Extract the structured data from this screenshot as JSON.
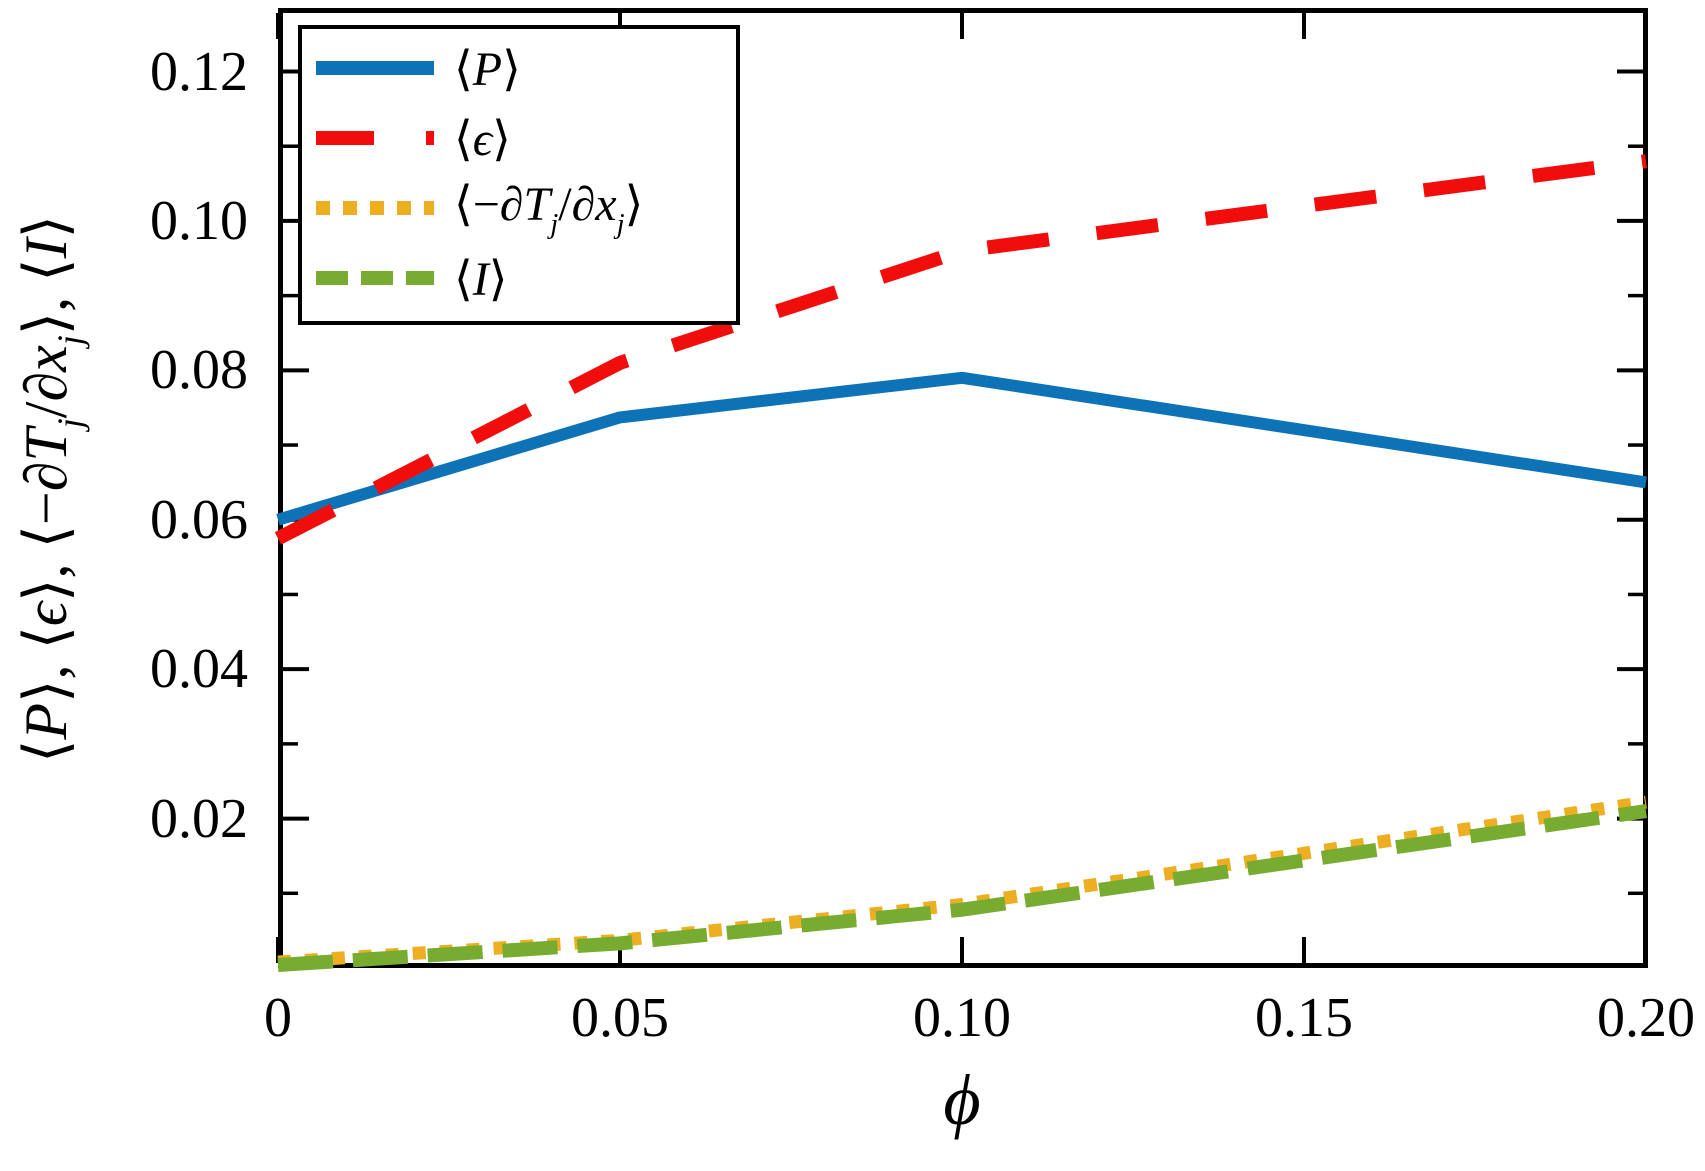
{
  "figure": {
    "x_label": "ϕ",
    "y_label_segments": [
      {
        "t": "⟨"
      },
      {
        "t": "P",
        "i": 1
      },
      {
        "t": "⟩, ⟨"
      },
      {
        "t": "ϵ",
        "i": 1
      },
      {
        "t": "⟩, ⟨−"
      },
      {
        "t": "∂T",
        "i": 1
      },
      {
        "t": "j",
        "i": 1,
        "s": 1
      },
      {
        "t": "/"
      },
      {
        "t": "∂x",
        "i": 1
      },
      {
        "t": "j",
        "i": 1,
        "s": 1
      },
      {
        "t": "⟩, ⟨"
      },
      {
        "t": "I",
        "i": 1
      },
      {
        "t": "⟩"
      }
    ]
  },
  "legend": {
    "position": "upper-left",
    "entries": [
      {
        "name": "P-series",
        "color": "#0E72B6",
        "dash": "",
        "key_dash": "",
        "segments": [
          {
            "t": "⟨"
          },
          {
            "t": "P",
            "i": 1
          },
          {
            "t": "⟩"
          }
        ]
      },
      {
        "name": "epsilon-series",
        "color": "#F20D0D",
        "dash": "62 48",
        "key_dash": "58 52",
        "segments": [
          {
            "t": "⟨"
          },
          {
            "t": "ϵ",
            "i": 1
          },
          {
            "t": "⟩"
          }
        ]
      },
      {
        "name": "dTdx-series",
        "color": "#EDAF21",
        "dash": "13 14",
        "key_dash": "14 13",
        "segments": [
          {
            "t": "⟨−"
          },
          {
            "t": "∂T",
            "i": 1
          },
          {
            "t": "j",
            "i": 1,
            "s": 1
          },
          {
            "t": "/"
          },
          {
            "t": "∂x",
            "i": 1
          },
          {
            "t": "j",
            "i": 1,
            "s": 1
          },
          {
            "t": "⟩"
          }
        ]
      },
      {
        "name": "I-series",
        "color": "#78AC30",
        "dash": "55 20",
        "key_dash": "32 13",
        "segments": [
          {
            "t": "⟨"
          },
          {
            "t": "I",
            "i": 1
          },
          {
            "t": "⟩"
          }
        ]
      }
    ]
  },
  "chart_data": {
    "type": "line",
    "x": [
      0,
      0.05,
      0.1,
      0.2
    ],
    "series": [
      {
        "name": "⟨P⟩",
        "values": [
          0.06,
          0.0737,
          0.079,
          0.065
        ],
        "color": "#0E72B6",
        "style": "solid",
        "width": 12
      },
      {
        "name": "⟨ϵ⟩",
        "values": [
          0.0575,
          0.081,
          0.096,
          0.108
        ],
        "color": "#F20D0D",
        "style": "dashed",
        "width": 14
      },
      {
        "name": "⟨−∂Tj/∂xj⟩",
        "values": [
          0.0008,
          0.0037,
          0.0085,
          0.0222
        ],
        "color": "#EDAF21",
        "style": "dotted",
        "width": 13
      },
      {
        "name": "⟨I⟩",
        "values": [
          0.0004,
          0.0033,
          0.0078,
          0.021
        ],
        "color": "#78AC30",
        "style": "long-dashed",
        "width": 14
      }
    ],
    "xlabel": "ϕ",
    "ylabel": "⟨P⟩, ⟨ϵ⟩, ⟨−∂Tj/∂xj⟩, ⟨I⟩",
    "xlim": [
      0,
      0.2
    ],
    "ylim": [
      0,
      0.1285
    ],
    "x_ticks": [
      0,
      0.05,
      0.1,
      0.15,
      0.2
    ],
    "x_tick_labels": [
      "0",
      "0.05",
      "0.10",
      "0.15",
      "0.20"
    ],
    "y_ticks": [
      0.02,
      0.04,
      0.06,
      0.08,
      0.1,
      0.12
    ],
    "y_tick_labels": [
      "0.02",
      "0.04",
      "0.06",
      "0.08",
      "0.10",
      "0.12"
    ],
    "y_minor_ticks": [
      0.01,
      0.03,
      0.05,
      0.07,
      0.09,
      0.11
    ],
    "grid": false,
    "legend_position": "upper-left"
  }
}
